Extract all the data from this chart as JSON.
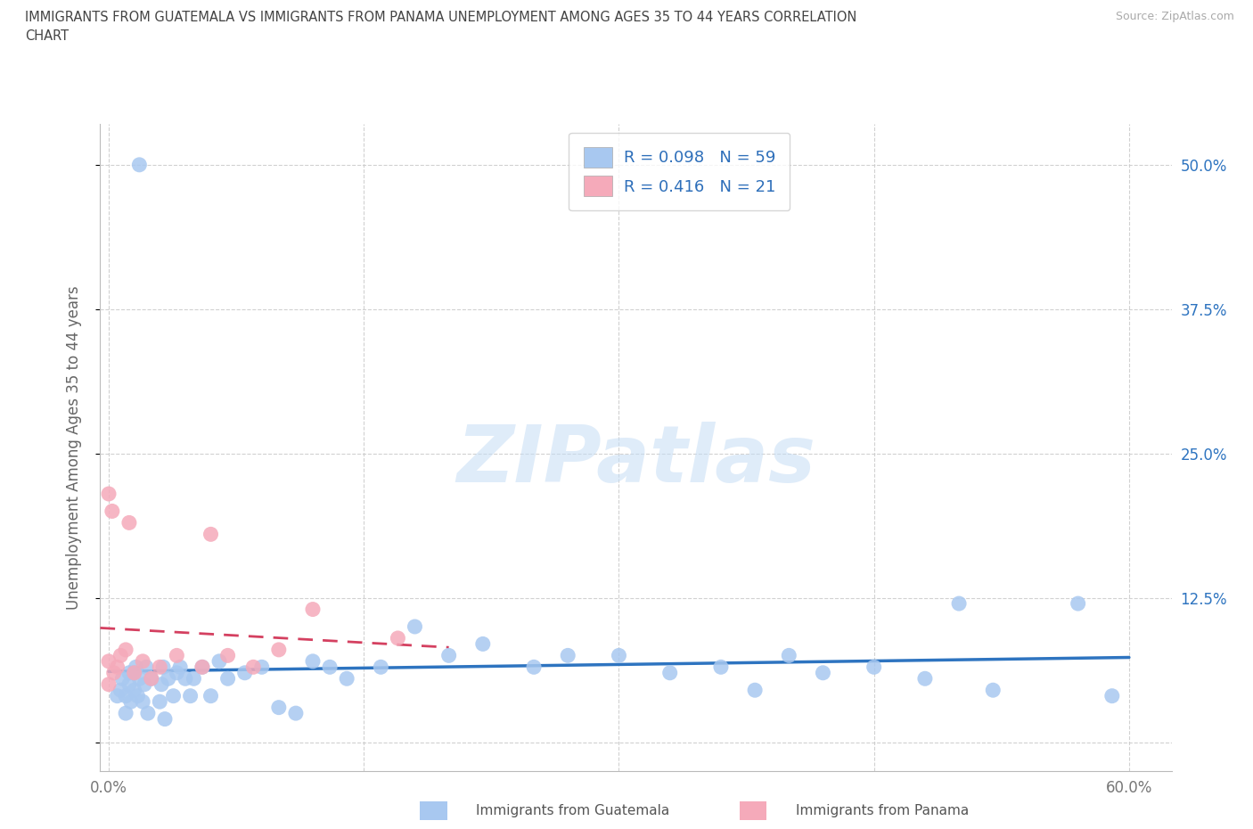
{
  "title_line1": "IMMIGRANTS FROM GUATEMALA VS IMMIGRANTS FROM PANAMA UNEMPLOYMENT AMONG AGES 35 TO 44 YEARS CORRELATION",
  "title_line2": "CHART",
  "source": "Source: ZipAtlas.com",
  "ylabel": "Unemployment Among Ages 35 to 44 years",
  "xlim": [
    -0.005,
    0.625
  ],
  "ylim": [
    -0.025,
    0.535
  ],
  "xtick_vals": [
    0.0,
    0.15,
    0.3,
    0.45,
    0.6
  ],
  "ytick_vals": [
    0.0,
    0.125,
    0.25,
    0.375,
    0.5
  ],
  "xticklabels": [
    "0.0%",
    "",
    "",
    "",
    "60.0%"
  ],
  "yticklabels": [
    "",
    "12.5%",
    "25.0%",
    "37.5%",
    "50.0%"
  ],
  "guatemala_R": "0.098",
  "guatemala_N": "59",
  "panama_R": "0.416",
  "panama_N": "21",
  "guatemala_color": "#a8c8f0",
  "panama_color": "#f5aaba",
  "guatemala_line_color": "#2e74c0",
  "panama_line_color": "#d44060",
  "watermark_text": "ZIPatlas",
  "legend_guatemala": "Immigrants from Guatemala",
  "legend_panama": "Immigrants from Panama",
  "guatemala_x": [
    0.005,
    0.007,
    0.008,
    0.01,
    0.01,
    0.012,
    0.012,
    0.013,
    0.015,
    0.015,
    0.016,
    0.017,
    0.018,
    0.018,
    0.02,
    0.021,
    0.022,
    0.023,
    0.025,
    0.03,
    0.031,
    0.032,
    0.033,
    0.035,
    0.038,
    0.04,
    0.042,
    0.045,
    0.048,
    0.05,
    0.055,
    0.06,
    0.065,
    0.07,
    0.08,
    0.09,
    0.1,
    0.11,
    0.12,
    0.13,
    0.14,
    0.16,
    0.18,
    0.2,
    0.22,
    0.25,
    0.27,
    0.3,
    0.33,
    0.36,
    0.38,
    0.4,
    0.42,
    0.45,
    0.48,
    0.5,
    0.52,
    0.57,
    0.59
  ],
  "guatemala_y": [
    0.04,
    0.045,
    0.055,
    0.025,
    0.04,
    0.05,
    0.06,
    0.035,
    0.045,
    0.06,
    0.065,
    0.04,
    0.055,
    0.5,
    0.035,
    0.05,
    0.065,
    0.025,
    0.055,
    0.035,
    0.05,
    0.065,
    0.02,
    0.055,
    0.04,
    0.06,
    0.065,
    0.055,
    0.04,
    0.055,
    0.065,
    0.04,
    0.07,
    0.055,
    0.06,
    0.065,
    0.03,
    0.025,
    0.07,
    0.065,
    0.055,
    0.065,
    0.1,
    0.075,
    0.085,
    0.065,
    0.075,
    0.075,
    0.06,
    0.065,
    0.045,
    0.075,
    0.06,
    0.065,
    0.055,
    0.12,
    0.045,
    0.12,
    0.04
  ],
  "panama_x": [
    0.0,
    0.0,
    0.0,
    0.002,
    0.003,
    0.005,
    0.007,
    0.01,
    0.012,
    0.015,
    0.02,
    0.025,
    0.03,
    0.04,
    0.055,
    0.06,
    0.07,
    0.085,
    0.1,
    0.12,
    0.17
  ],
  "panama_y": [
    0.05,
    0.07,
    0.215,
    0.2,
    0.06,
    0.065,
    0.075,
    0.08,
    0.19,
    0.06,
    0.07,
    0.055,
    0.065,
    0.075,
    0.065,
    0.18,
    0.075,
    0.065,
    0.08,
    0.115,
    0.09
  ],
  "panama_line_x0": 0.0,
  "panama_line_x1": 0.17,
  "guatemala_line_x0": 0.0,
  "guatemala_line_x1": 0.6
}
